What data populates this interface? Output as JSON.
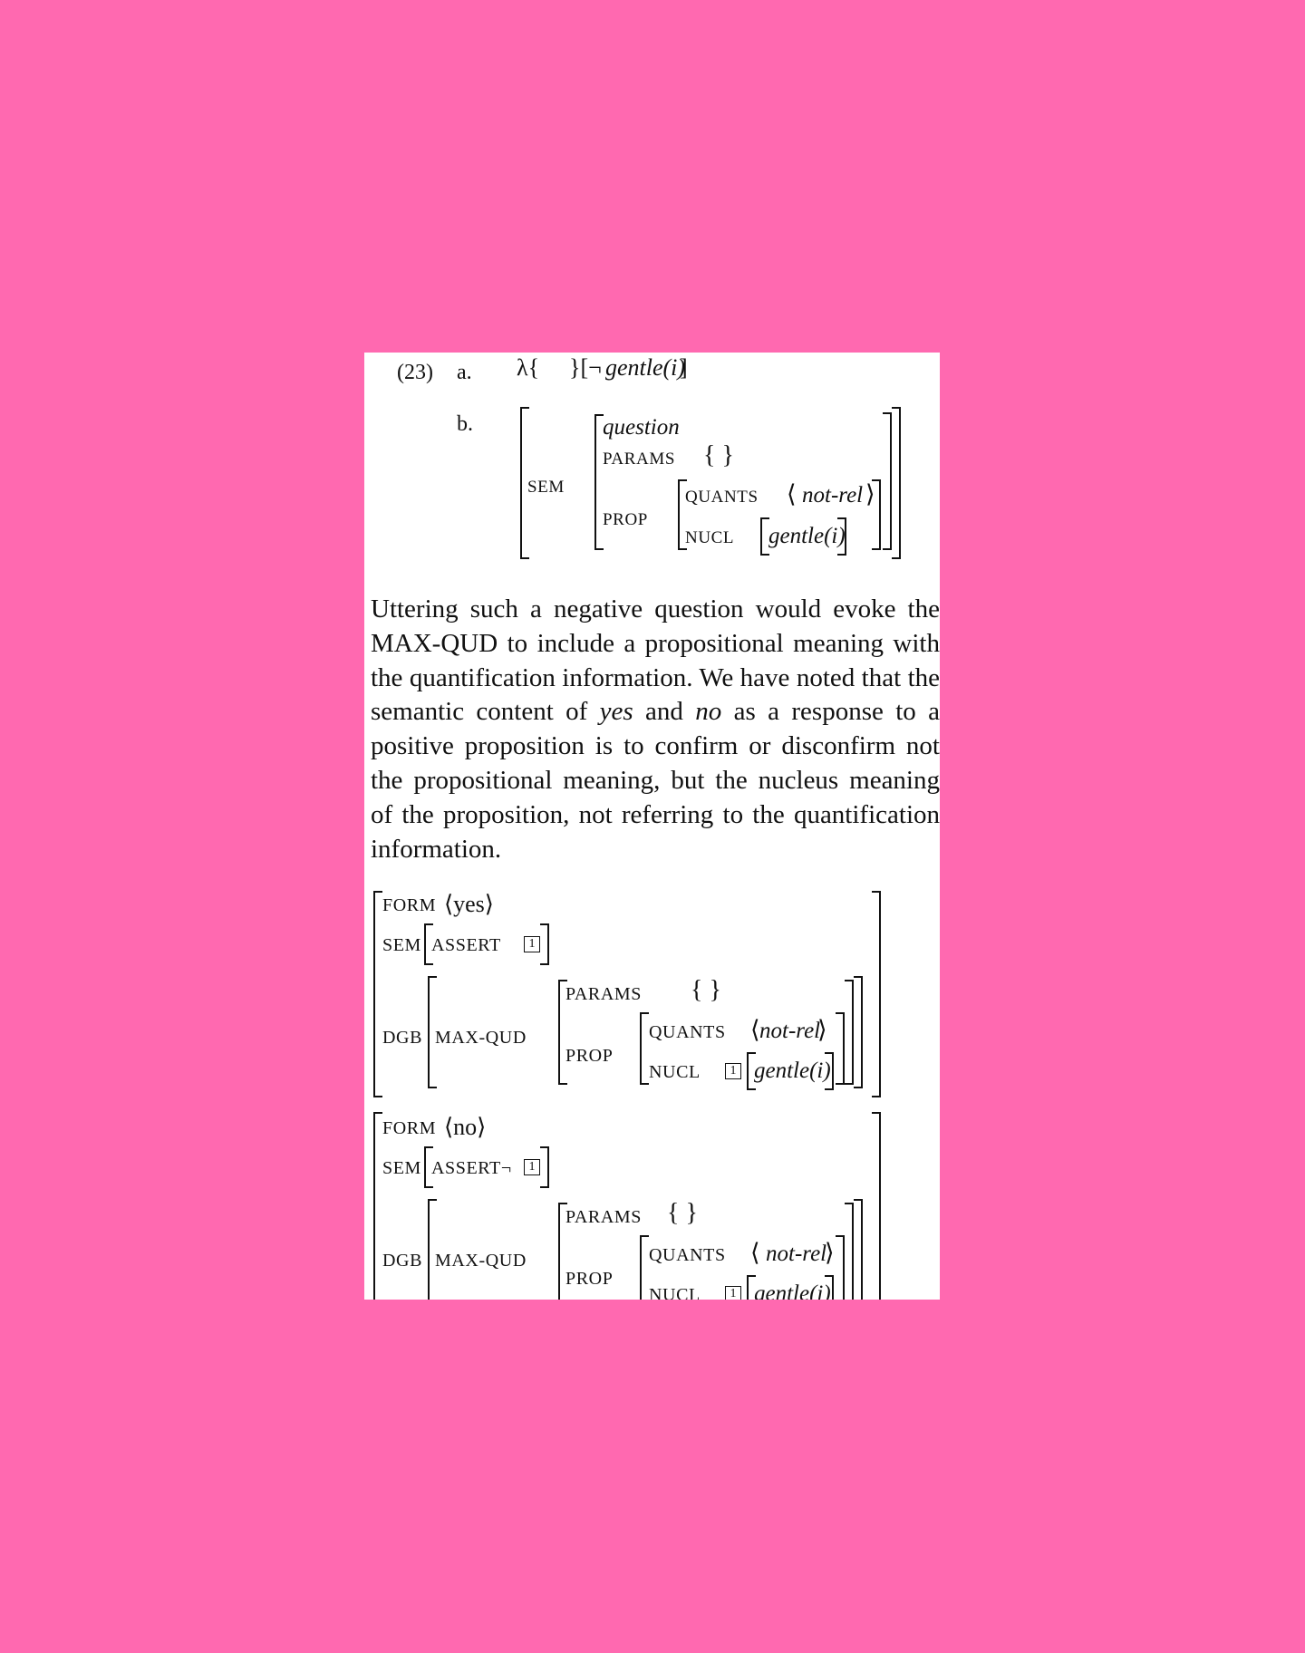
{
  "example": {
    "number": "(23)",
    "a": {
      "label": "a.",
      "lambda": "λ{",
      "close": "}[¬",
      "pred": "gentle(i)",
      "end": "]"
    },
    "b": {
      "label": "b.",
      "sem": "SEM",
      "type": "question",
      "params": "PARAMS",
      "params_val": "{    }",
      "prop": "PROP",
      "quants": "QUANTS",
      "quants_val": "not-rel",
      "nucl": "NUCL",
      "nucl_val": "gentle(i)"
    }
  },
  "paragraph": {
    "seg1": "Uttering such a negative question would evoke the ",
    "smallcaps1": "MAX-QUD",
    "seg2": " to include a propositional meaning with the quantification information.  We have noted that the semantic content of ",
    "yes": "yes",
    "seg3": " and ",
    "no": "no",
    "seg4": " as a response to a positive proposition is to confirm or disconfirm not the propositional meaning, but the nucleus meaning of the proposition, not referring to the quantification information."
  },
  "avm_yes": {
    "form": "FORM",
    "form_val": "⟨yes⟩",
    "sem": "SEM",
    "assert": "ASSERT",
    "tag": "1",
    "dgb": "DGB",
    "maxqud": "MAX-QUD",
    "params": "PARAMS",
    "params_val": "{    }",
    "prop": "PROP",
    "quants": "QUANTS",
    "quants_val": "not-rel",
    "nucl": "NUCL",
    "nucl_val": "gentle(i)"
  },
  "avm_no": {
    "form": "FORM",
    "form_val": "⟨no⟩",
    "sem": "SEM",
    "assert": "ASSERT¬",
    "tag": "1",
    "dgb": "DGB",
    "maxqud": "MAX-QUD",
    "params": "PARAMS",
    "params_val": "{    }",
    "prop": "PROP",
    "quants": "QUANTS",
    "quants_val": "not-rel",
    "nucl": "NUCL",
    "nucl_val": "gentle(i)"
  }
}
